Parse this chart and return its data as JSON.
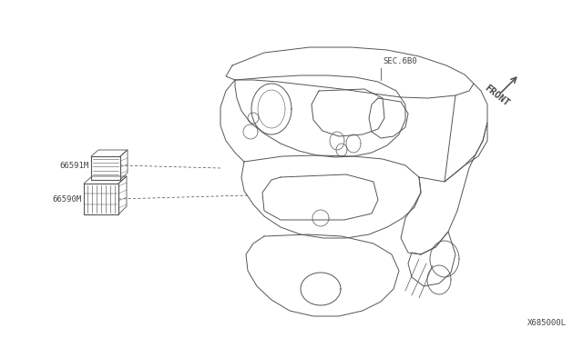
{
  "bg_color": "#ffffff",
  "line_color": "#555555",
  "text_color": "#444444",
  "label_66591M": "66591M",
  "label_66590M": "66590M",
  "label_sec680": "SEC.6B0",
  "label_front": "FRONT",
  "label_partno": "X685000L",
  "font_size_labels": 6.5,
  "font_size_partno": 6.5,
  "font_size_front": 7.5
}
